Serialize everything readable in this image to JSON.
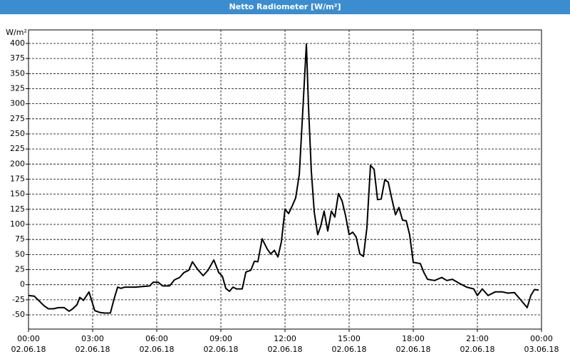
{
  "chart_data": {
    "type": "line",
    "title": "Netto Radiometer [W/m²]",
    "y_unit": "W/m²",
    "x": [
      0,
      0.27,
      0.5,
      0.73,
      0.93,
      1.17,
      1.4,
      1.67,
      1.9,
      2.07,
      2.27,
      2.4,
      2.57,
      2.83,
      3.1,
      3.33,
      3.57,
      3.83,
      4,
      4.17,
      4.33,
      4.5,
      5,
      5.67,
      5.83,
      6.07,
      6.27,
      6.6,
      6.83,
      7.07,
      7.27,
      7.5,
      7.67,
      7.9,
      8.17,
      8.4,
      8.67,
      8.9,
      9.07,
      9.23,
      9.4,
      9.57,
      9.73,
      10,
      10.17,
      10.4,
      10.57,
      10.73,
      10.93,
      11.17,
      11.33,
      11.5,
      11.67,
      11.83,
      12,
      12.17,
      12.33,
      12.5,
      12.67,
      12.83,
      13,
      13.1,
      13.23,
      13.37,
      13.53,
      13.67,
      13.83,
      14,
      14.17,
      14.33,
      14.5,
      14.67,
      14.83,
      15,
      15.17,
      15.33,
      15.5,
      15.67,
      15.83,
      16,
      16.17,
      16.33,
      16.5,
      16.67,
      16.83,
      17,
      17.17,
      17.33,
      17.5,
      17.67,
      17.83,
      18,
      18.33,
      18.5,
      18.67,
      19,
      19.33,
      19.57,
      19.83,
      20.17,
      20.5,
      20.83,
      21,
      21.23,
      21.5,
      21.83,
      22.17,
      22.43,
      22.73,
      23,
      23.33,
      23.5,
      23.67,
      23.87
    ],
    "series": [
      {
        "color": "#000000",
        "values": [
          -18,
          -19,
          -27,
          -35,
          -40,
          -40,
          -38,
          -38,
          -44,
          -40,
          -33,
          -21,
          -26,
          -12,
          -43,
          -46,
          -47,
          -47,
          -24,
          -4,
          -6,
          -4,
          -4,
          -2,
          4,
          4,
          -2,
          -2,
          8,
          12,
          20,
          24,
          38,
          26,
          15,
          24,
          41,
          20,
          14,
          -6,
          -11,
          -4,
          -7,
          -7,
          21,
          24,
          39,
          38,
          76,
          59,
          51,
          57,
          46,
          71,
          125,
          118,
          130,
          144,
          183,
          287,
          399,
          295,
          189,
          120,
          83,
          97,
          122,
          89,
          122,
          112,
          151,
          139,
          115,
          83,
          87,
          79,
          51,
          47,
          94,
          198,
          191,
          141,
          142,
          174,
          170,
          142,
          116,
          128,
          107,
          106,
          83,
          37,
          35,
          20,
          9,
          7,
          12,
          7,
          9,
          2,
          -4,
          -7,
          -18,
          -7,
          -18,
          -12,
          -12,
          -14,
          -13,
          -24,
          -38,
          -18,
          -8,
          -9
        ]
      }
    ],
    "xlim": [
      0,
      24
    ],
    "xticks": [
      {
        "value": 0,
        "label": "00:00"
      },
      {
        "value": 3,
        "label": "03:00"
      },
      {
        "value": 6,
        "label": "06:00"
      },
      {
        "value": 9,
        "label": "09:00"
      },
      {
        "value": 12,
        "label": "12:00"
      },
      {
        "value": 15,
        "label": "15:00"
      },
      {
        "value": 18,
        "label": "18:00"
      },
      {
        "value": 21,
        "label": "21:00"
      },
      {
        "value": 24,
        "label": "00:00"
      }
    ],
    "xtick_dates": [
      "02.06.18",
      "02.06.18",
      "02.06.18",
      "02.06.18",
      "02.06.18",
      "02.06.18",
      "02.06.18",
      "02.06.18",
      "03.06.18"
    ],
    "ylim": [
      -73.6,
      422.4
    ],
    "yticks": [
      -50,
      -25,
      0,
      25,
      50,
      75,
      100,
      125,
      150,
      175,
      200,
      225,
      250,
      275,
      300,
      325,
      350,
      375,
      400
    ],
    "grid": true
  }
}
